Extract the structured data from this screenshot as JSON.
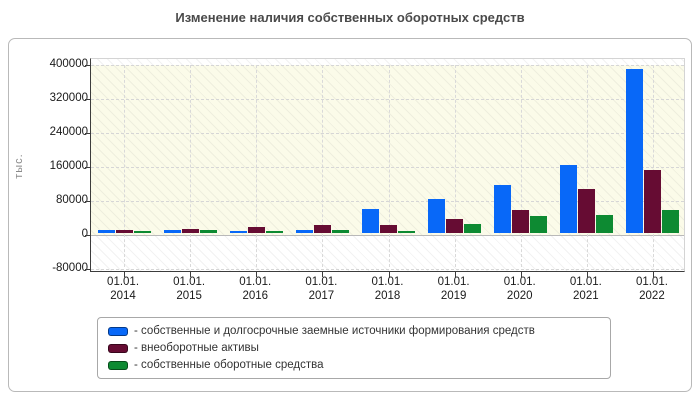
{
  "title": "Изменение наличия собственных оборотных средств",
  "y_axis": {
    "unit": "тыс.",
    "tick_labels": [
      "400000",
      "320000",
      "240000",
      "160000",
      "80000",
      "0",
      "-80000"
    ]
  },
  "x_axis": {
    "date_prefix": "01.01.",
    "years": [
      "2014",
      "2015",
      "2016",
      "2017",
      "2018",
      "2019",
      "2020",
      "2021",
      "2022"
    ]
  },
  "legend": {
    "items": [
      {
        "label": "- собственные и долгосрочные заемные источники формирования средств",
        "color": "#0868f8"
      },
      {
        "label": "- внеоборотные активы",
        "color": "#660c33"
      },
      {
        "label": "- собственные оборотные средства",
        "color": "#0d8a32"
      }
    ]
  },
  "chart_data": {
    "type": "bar",
    "title": "Изменение наличия собственных оборотных средств",
    "ylabel": "тыс.",
    "xlabel": "",
    "ylim": [
      -80000,
      400000
    ],
    "ytick_step": 80000,
    "grid": true,
    "legend_position": "bottom",
    "categories": [
      "01.01.2014",
      "01.01.2015",
      "01.01.2016",
      "01.01.2017",
      "01.01.2018",
      "01.01.2019",
      "01.01.2020",
      "01.01.2021",
      "01.01.2022"
    ],
    "series": [
      {
        "name": "собственные и долгосрочные заемные источники формирования средств",
        "color": "#0868f8",
        "values": [
          6000,
          7000,
          5000,
          6000,
          56000,
          81000,
          114000,
          160000,
          385000
        ]
      },
      {
        "name": "внеоборотные активы",
        "color": "#660c33",
        "values": [
          6000,
          9000,
          15000,
          19000,
          19000,
          34000,
          53000,
          104000,
          148000
        ]
      },
      {
        "name": "собственные оборотные средства",
        "color": "#0d8a32",
        "values": [
          5000,
          7000,
          5000,
          6000,
          5000,
          22000,
          40000,
          43000,
          55000
        ]
      }
    ]
  }
}
